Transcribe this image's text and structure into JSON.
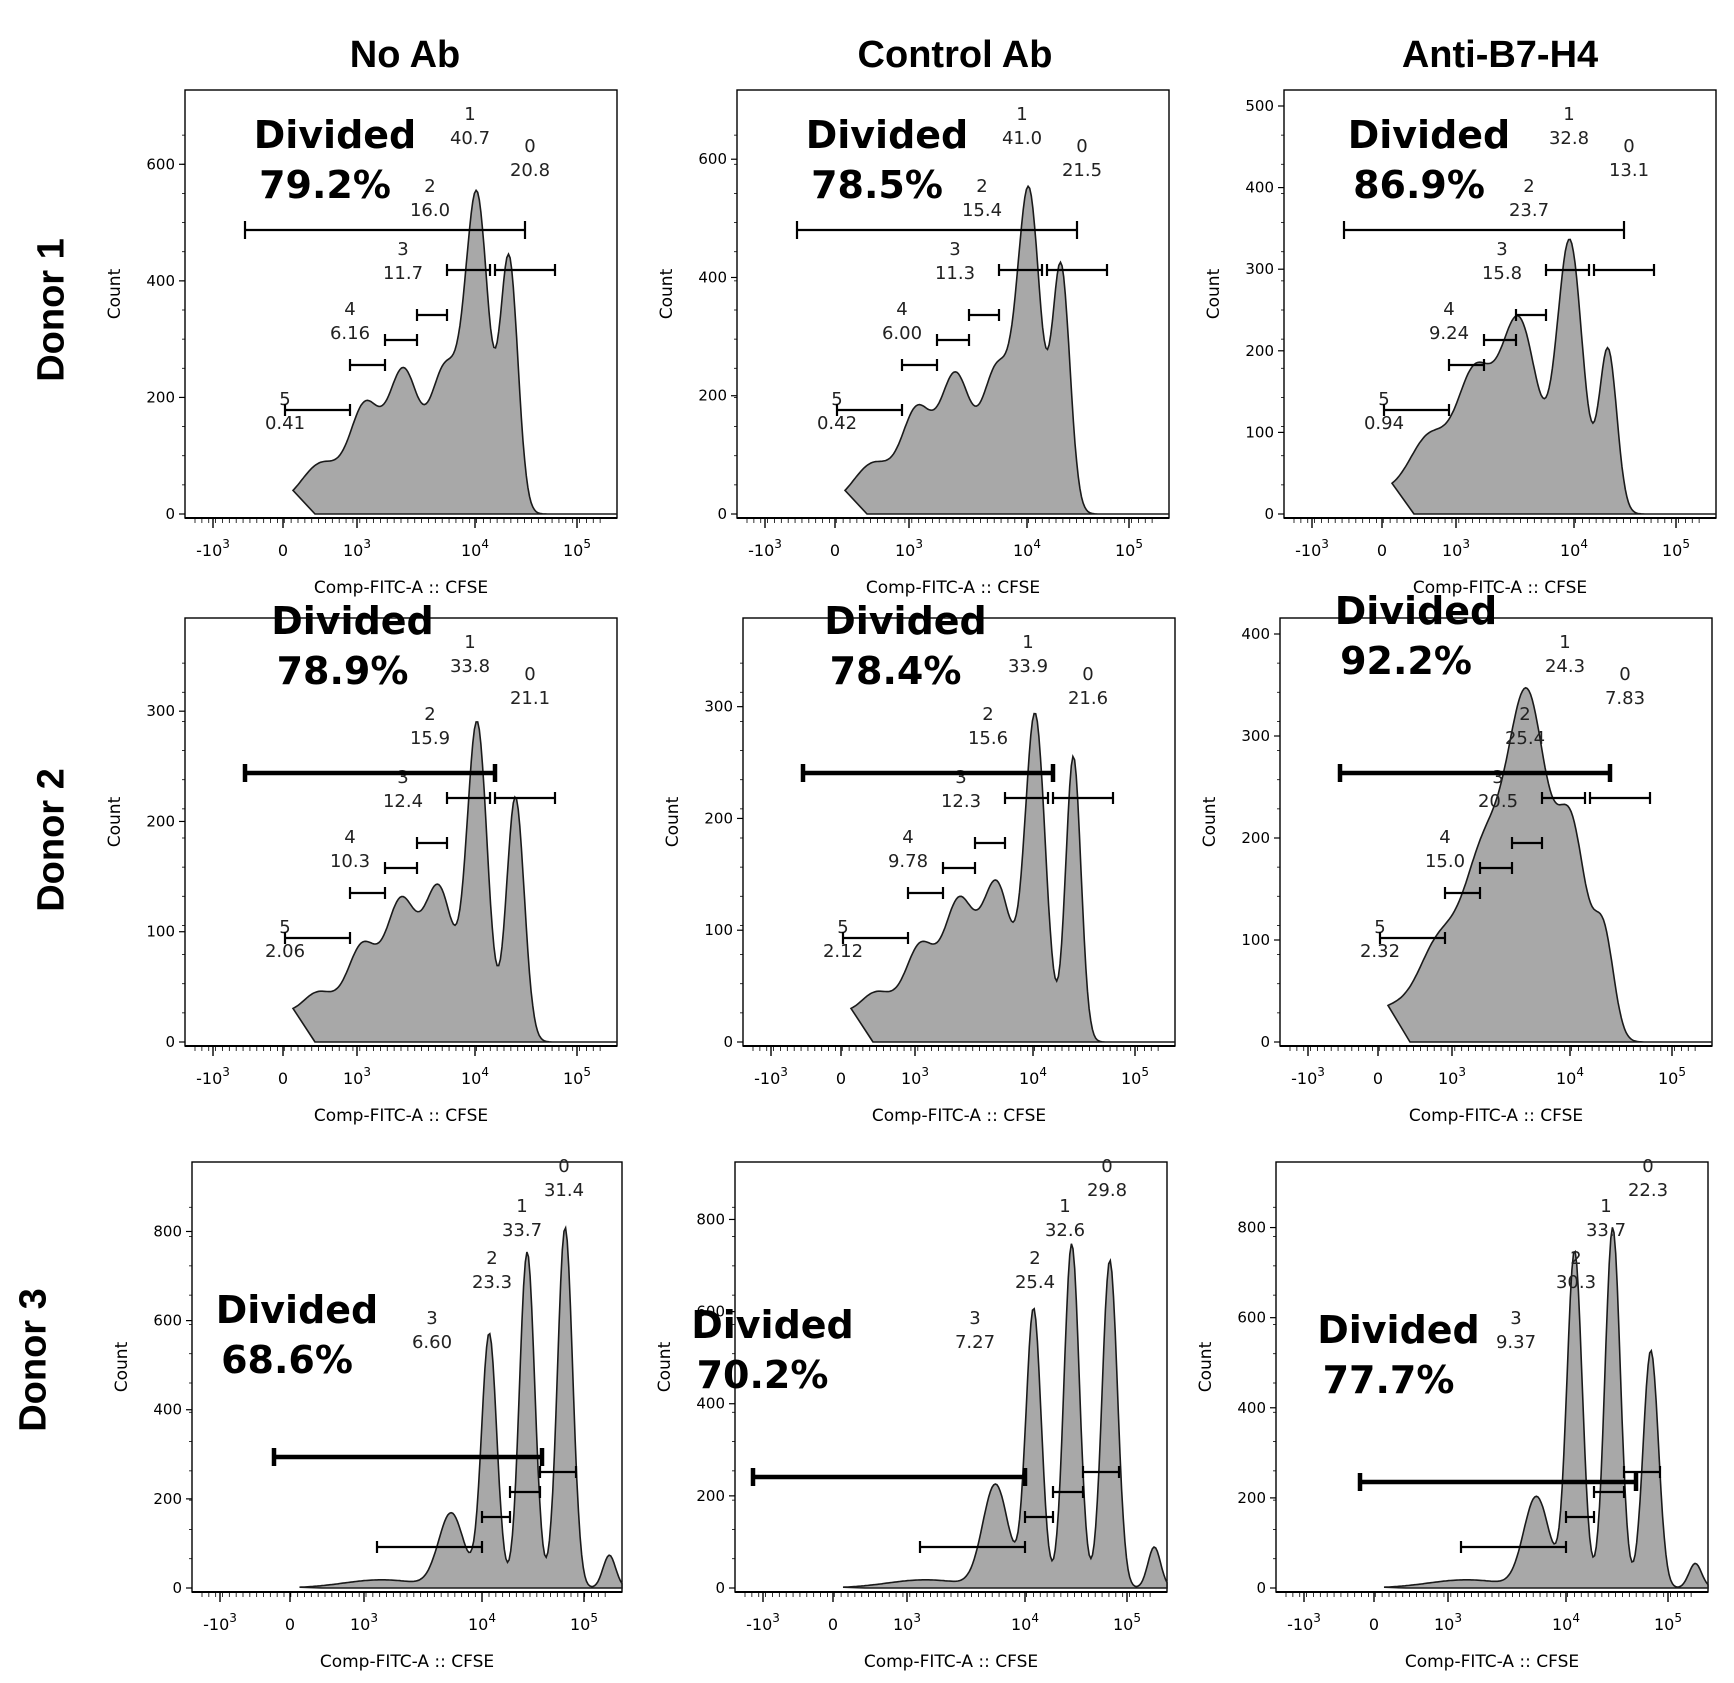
{
  "figure": {
    "column_titles": [
      "No Ab",
      "Control Ab",
      "Anti-B7-H4"
    ],
    "row_titles": [
      "Donor 1",
      "Donor 2",
      "Donor 3"
    ]
  },
  "colors": {
    "histogram_fill": "#a8a8a8",
    "histogram_line": "#1a1a1a",
    "axis": "#000000"
  },
  "chart_data": [
    {
      "type": "area",
      "row": "Donor 1",
      "column": "No Ab",
      "xlabel": "Comp-FITC-A :: CFSE",
      "ylabel": "Count",
      "ymax": 700,
      "yticks": [
        0,
        200,
        400,
        600
      ],
      "xticks": [
        "-10^3",
        "0",
        "10^3",
        "10^4",
        "10^5"
      ],
      "divided_label": "Divided",
      "divided_value": "79.2%",
      "gates": [
        {
          "name": "0",
          "value": "20.8"
        },
        {
          "name": "1",
          "value": "40.7"
        },
        {
          "name": "2",
          "value": "16.0"
        },
        {
          "name": "3",
          "value": "11.7"
        },
        {
          "name": "4",
          "value": "6.16"
        },
        {
          "name": "5",
          "value": "0.41"
        }
      ]
    },
    {
      "type": "area",
      "row": "Donor 1",
      "column": "Control Ab",
      "xlabel": "Comp-FITC-A :: CFSE",
      "ylabel": "Count",
      "ymax": 690,
      "yticks": [
        0,
        200,
        400,
        600
      ],
      "xticks": [
        "-10^3",
        "0",
        "10^3",
        "10^4",
        "10^5"
      ],
      "divided_label": "Divided",
      "divided_value": "78.5%",
      "gates": [
        {
          "name": "0",
          "value": "21.5"
        },
        {
          "name": "1",
          "value": "41.0"
        },
        {
          "name": "2",
          "value": "15.4"
        },
        {
          "name": "3",
          "value": "11.3"
        },
        {
          "name": "4",
          "value": "6.00"
        },
        {
          "name": "5",
          "value": "0.42"
        }
      ]
    },
    {
      "type": "area",
      "row": "Donor 1",
      "column": "Anti-B7-H4",
      "xlabel": "Comp-FITC-A :: CFSE",
      "ylabel": "Count",
      "ymax": 500,
      "yticks": [
        0,
        100,
        200,
        300,
        400,
        500
      ],
      "xticks": [
        "-10^3",
        "0",
        "10^3",
        "10^4",
        "10^5"
      ],
      "divided_label": "Divided",
      "divided_value": "86.9%",
      "gates": [
        {
          "name": "0",
          "value": "13.1"
        },
        {
          "name": "1",
          "value": "32.8"
        },
        {
          "name": "2",
          "value": "23.7"
        },
        {
          "name": "3",
          "value": "15.8"
        },
        {
          "name": "4",
          "value": "9.24"
        },
        {
          "name": "5",
          "value": "0.94"
        }
      ]
    },
    {
      "type": "area",
      "row": "Donor 2",
      "column": "No Ab",
      "xlabel": "Comp-FITC-A :: CFSE",
      "ylabel": "Count",
      "ymax": 370,
      "yticks": [
        0,
        100,
        200,
        300
      ],
      "xticks": [
        "-10^3",
        "0",
        "10^3",
        "10^4",
        "10^5"
      ],
      "divided_label": "Divided",
      "divided_value": "78.9%",
      "gates": [
        {
          "name": "0",
          "value": "21.1"
        },
        {
          "name": "1",
          "value": "33.8"
        },
        {
          "name": "2",
          "value": "15.9"
        },
        {
          "name": "3",
          "value": "12.4"
        },
        {
          "name": "4",
          "value": "10.3"
        },
        {
          "name": "5",
          "value": "2.06"
        }
      ]
    },
    {
      "type": "area",
      "row": "Donor 2",
      "column": "Control Ab",
      "xlabel": "Comp-FITC-A :: CFSE",
      "ylabel": "Count",
      "ymax": 365,
      "yticks": [
        0,
        100,
        200,
        300
      ],
      "xticks": [
        "-10^3",
        "0",
        "10^3",
        "10^4",
        "10^5"
      ],
      "divided_label": "Divided",
      "divided_value": "78.4%",
      "gates": [
        {
          "name": "0",
          "value": "21.6"
        },
        {
          "name": "1",
          "value": "33.9"
        },
        {
          "name": "2",
          "value": "15.6"
        },
        {
          "name": "3",
          "value": "12.3"
        },
        {
          "name": "4",
          "value": "9.78"
        },
        {
          "name": "5",
          "value": "2.12"
        }
      ]
    },
    {
      "type": "area",
      "row": "Donor 2",
      "column": "Anti-B7-H4",
      "xlabel": "Comp-FITC-A :: CFSE",
      "ylabel": "Count",
      "ymax": 400,
      "yticks": [
        0,
        100,
        200,
        300,
        400
      ],
      "xticks": [
        "-10^3",
        "0",
        "10^3",
        "10^4",
        "10^5"
      ],
      "divided_label": "Divided",
      "divided_value": "92.2%",
      "gates": [
        {
          "name": "0",
          "value": "7.83"
        },
        {
          "name": "1",
          "value": "24.3"
        },
        {
          "name": "2",
          "value": "25.4"
        },
        {
          "name": "3",
          "value": "20.5"
        },
        {
          "name": "4",
          "value": "15.0"
        },
        {
          "name": "5",
          "value": "2.32"
        }
      ]
    },
    {
      "type": "area",
      "row": "Donor 3",
      "column": "No Ab",
      "xlabel": "Comp-FITC-A :: CFSE",
      "ylabel": "Count",
      "ymax": 920,
      "yticks": [
        0,
        200,
        400,
        600,
        800
      ],
      "xticks": [
        "-10^3",
        "0",
        "10^3",
        "10^4",
        "10^5"
      ],
      "divided_label": "Divided",
      "divided_value": "68.6%",
      "gates": [
        {
          "name": "0",
          "value": "31.4"
        },
        {
          "name": "1",
          "value": "33.7"
        },
        {
          "name": "2",
          "value": "23.3"
        },
        {
          "name": "3",
          "value": "6.60"
        }
      ]
    },
    {
      "type": "area",
      "row": "Donor 3",
      "column": "Control Ab",
      "xlabel": "Comp-FITC-A :: CFSE",
      "ylabel": "Count",
      "ymax": 890,
      "yticks": [
        0,
        200,
        400,
        600,
        800
      ],
      "xticks": [
        "-10^3",
        "0",
        "10^3",
        "10^4",
        "10^5"
      ],
      "divided_label": "Divided",
      "divided_value": "70.2%",
      "gates": [
        {
          "name": "0",
          "value": "29.8"
        },
        {
          "name": "1",
          "value": "32.6"
        },
        {
          "name": "2",
          "value": "25.4"
        },
        {
          "name": "3",
          "value": "7.27"
        }
      ]
    },
    {
      "type": "area",
      "row": "Donor 3",
      "column": "Anti-B7-H4",
      "xlabel": "Comp-FITC-A :: CFSE",
      "ylabel": "Count",
      "ymax": 910,
      "yticks": [
        0,
        200,
        400,
        600,
        800
      ],
      "xticks": [
        "-10^3",
        "0",
        "10^3",
        "10^4",
        "10^5"
      ],
      "divided_label": "Divided",
      "divided_value": "77.7%",
      "gates": [
        {
          "name": "0",
          "value": "22.3"
        },
        {
          "name": "1",
          "value": "33.7"
        },
        {
          "name": "2",
          "value": "30.3"
        },
        {
          "name": "3",
          "value": "9.37"
        }
      ]
    }
  ]
}
